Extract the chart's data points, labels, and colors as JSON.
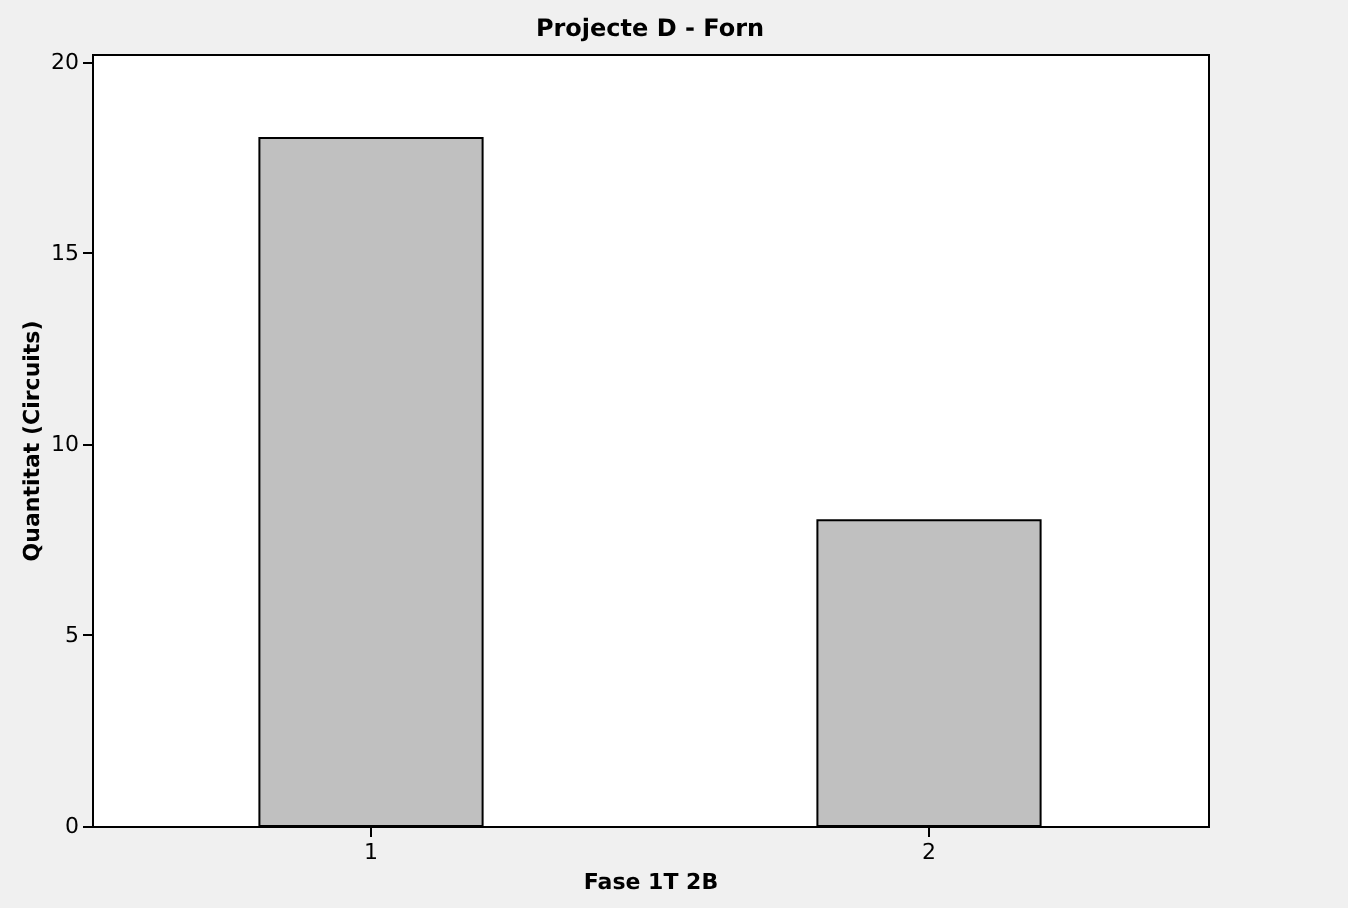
{
  "chart_data": {
    "type": "bar",
    "title": "Projecte D - Forn",
    "xlabel": "Fase 1T 2B",
    "ylabel": "Quantitat (Circuits)",
    "categories": [
      "1",
      "2"
    ],
    "series": [
      {
        "color": "#c0c0c0",
        "values": [
          18,
          8
        ]
      }
    ],
    "ylim": [
      0,
      20.2
    ],
    "yticks": [
      0,
      5,
      10,
      15,
      20
    ],
    "grid": false
  }
}
